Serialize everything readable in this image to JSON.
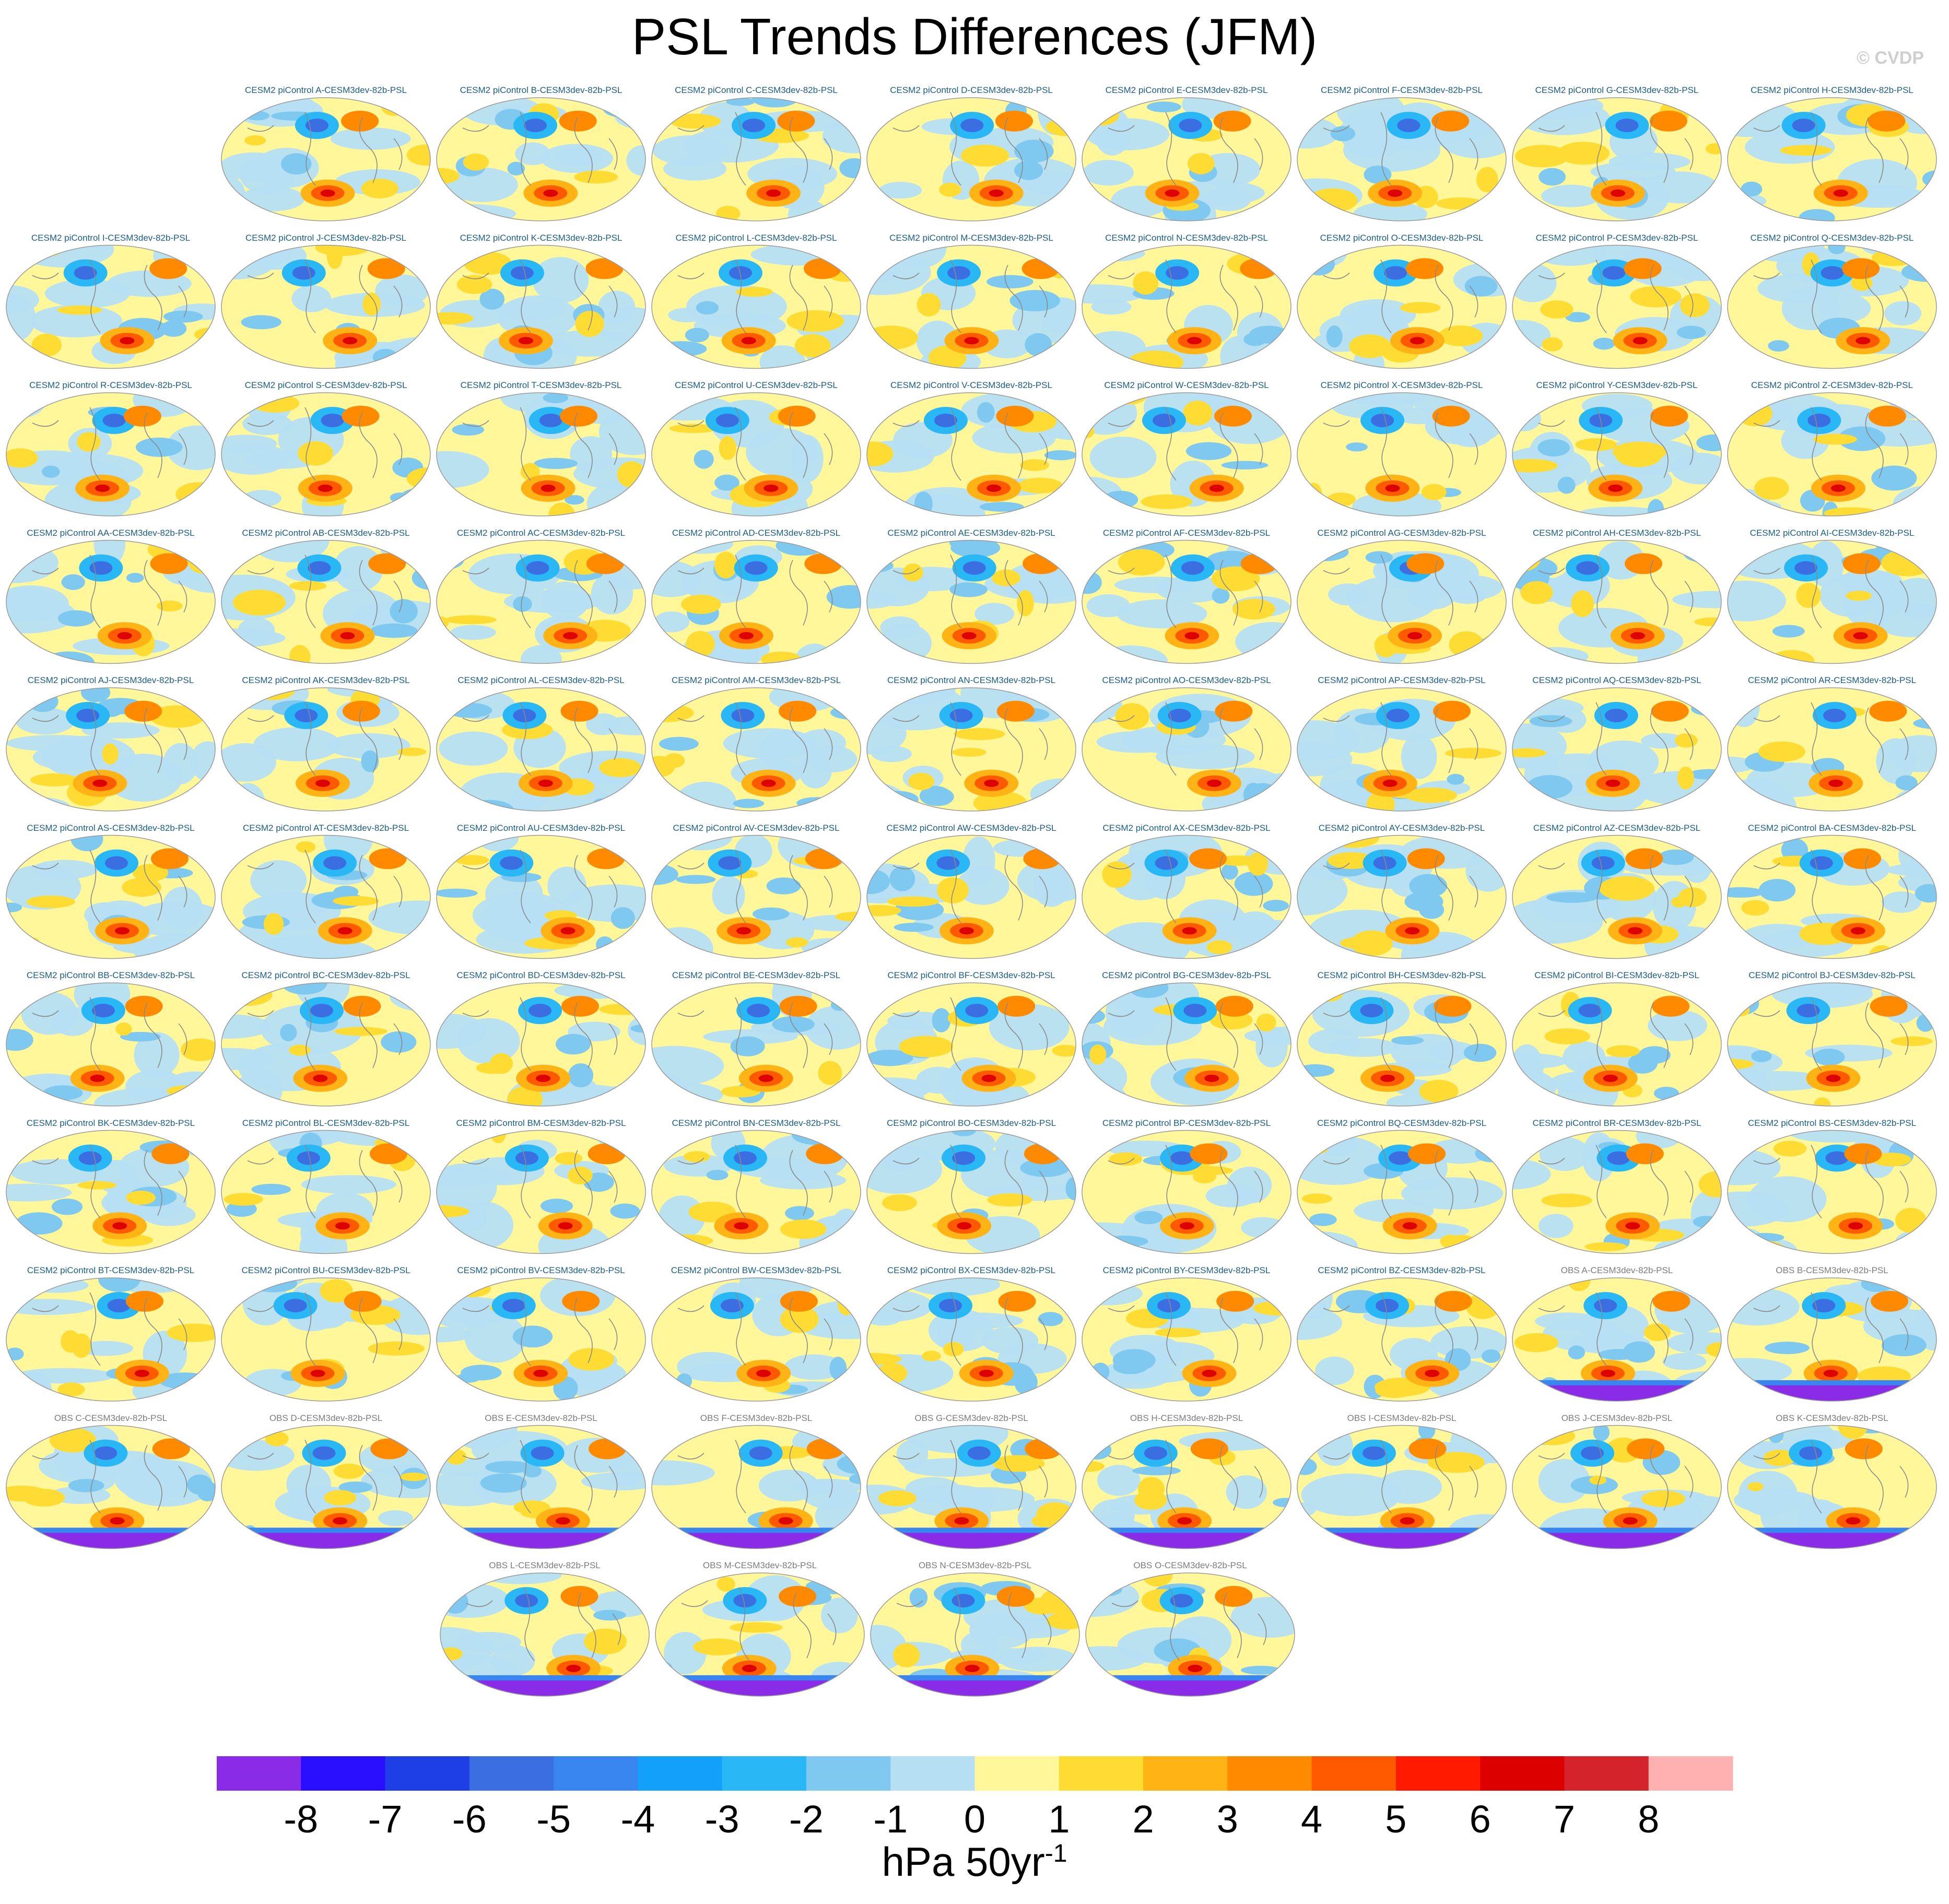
{
  "figure": {
    "title": "PSL Trends Differences (JFM)",
    "credit": "© CVDP"
  },
  "chart_data": {
    "type": "heatmap",
    "title": "PSL Trends Differences (JFM)",
    "projection": "robinson-global",
    "model_label_color": "#1a5d86",
    "obs_label_color": "#7c7c7c",
    "coastline_color": "#8a8a8a",
    "panel_rows": [
      [
        "CESM2 piControl A-CESM3dev-82b-PSL",
        "CESM2 piControl B-CESM3dev-82b-PSL",
        "CESM2 piControl C-CESM3dev-82b-PSL",
        "CESM2 piControl D-CESM3dev-82b-PSL",
        "CESM2 piControl E-CESM3dev-82b-PSL",
        "CESM2 piControl F-CESM3dev-82b-PSL",
        "CESM2 piControl G-CESM3dev-82b-PSL",
        "CESM2 piControl H-CESM3dev-82b-PSL"
      ],
      [
        "CESM2 piControl I-CESM3dev-82b-PSL",
        "CESM2 piControl J-CESM3dev-82b-PSL",
        "CESM2 piControl K-CESM3dev-82b-PSL",
        "CESM2 piControl L-CESM3dev-82b-PSL",
        "CESM2 piControl M-CESM3dev-82b-PSL",
        "CESM2 piControl N-CESM3dev-82b-PSL",
        "CESM2 piControl O-CESM3dev-82b-PSL",
        "CESM2 piControl P-CESM3dev-82b-PSL",
        "CESM2 piControl Q-CESM3dev-82b-PSL"
      ],
      [
        "CESM2 piControl R-CESM3dev-82b-PSL",
        "CESM2 piControl S-CESM3dev-82b-PSL",
        "CESM2 piControl T-CESM3dev-82b-PSL",
        "CESM2 piControl U-CESM3dev-82b-PSL",
        "CESM2 piControl V-CESM3dev-82b-PSL",
        "CESM2 piControl W-CESM3dev-82b-PSL",
        "CESM2 piControl X-CESM3dev-82b-PSL",
        "CESM2 piControl Y-CESM3dev-82b-PSL",
        "CESM2 piControl Z-CESM3dev-82b-PSL"
      ],
      [
        "CESM2 piControl AA-CESM3dev-82b-PSL",
        "CESM2 piControl AB-CESM3dev-82b-PSL",
        "CESM2 piControl AC-CESM3dev-82b-PSL",
        "CESM2 piControl AD-CESM3dev-82b-PSL",
        "CESM2 piControl AE-CESM3dev-82b-PSL",
        "CESM2 piControl AF-CESM3dev-82b-PSL",
        "CESM2 piControl AG-CESM3dev-82b-PSL",
        "CESM2 piControl AH-CESM3dev-82b-PSL",
        "CESM2 piControl AI-CESM3dev-82b-PSL"
      ],
      [
        "CESM2 piControl AJ-CESM3dev-82b-PSL",
        "CESM2 piControl AK-CESM3dev-82b-PSL",
        "CESM2 piControl AL-CESM3dev-82b-PSL",
        "CESM2 piControl AM-CESM3dev-82b-PSL",
        "CESM2 piControl AN-CESM3dev-82b-PSL",
        "CESM2 piControl AO-CESM3dev-82b-PSL",
        "CESM2 piControl AP-CESM3dev-82b-PSL",
        "CESM2 piControl AQ-CESM3dev-82b-PSL",
        "CESM2 piControl AR-CESM3dev-82b-PSL"
      ],
      [
        "CESM2 piControl AS-CESM3dev-82b-PSL",
        "CESM2 piControl AT-CESM3dev-82b-PSL",
        "CESM2 piControl AU-CESM3dev-82b-PSL",
        "CESM2 piControl AV-CESM3dev-82b-PSL",
        "CESM2 piControl AW-CESM3dev-82b-PSL",
        "CESM2 piControl AX-CESM3dev-82b-PSL",
        "CESM2 piControl AY-CESM3dev-82b-PSL",
        "CESM2 piControl AZ-CESM3dev-82b-PSL",
        "CESM2 piControl BA-CESM3dev-82b-PSL"
      ],
      [
        "CESM2 piControl BB-CESM3dev-82b-PSL",
        "CESM2 piControl BC-CESM3dev-82b-PSL",
        "CESM2 piControl BD-CESM3dev-82b-PSL",
        "CESM2 piControl BE-CESM3dev-82b-PSL",
        "CESM2 piControl BF-CESM3dev-82b-PSL",
        "CESM2 piControl BG-CESM3dev-82b-PSL",
        "CESM2 piControl BH-CESM3dev-82b-PSL",
        "CESM2 piControl BI-CESM3dev-82b-PSL",
        "CESM2 piControl BJ-CESM3dev-82b-PSL"
      ],
      [
        "CESM2 piControl BK-CESM3dev-82b-PSL",
        "CESM2 piControl BL-CESM3dev-82b-PSL",
        "CESM2 piControl BM-CESM3dev-82b-PSL",
        "CESM2 piControl BN-CESM3dev-82b-PSL",
        "CESM2 piControl BO-CESM3dev-82b-PSL",
        "CESM2 piControl BP-CESM3dev-82b-PSL",
        "CESM2 piControl BQ-CESM3dev-82b-PSL",
        "CESM2 piControl BR-CESM3dev-82b-PSL",
        "CESM2 piControl BS-CESM3dev-82b-PSL"
      ],
      [
        "CESM2 piControl BT-CESM3dev-82b-PSL",
        "CESM2 piControl BU-CESM3dev-82b-PSL",
        "CESM2 piControl BV-CESM3dev-82b-PSL",
        "CESM2 piControl BW-CESM3dev-82b-PSL",
        "CESM2 piControl BX-CESM3dev-82b-PSL",
        "CESM2 piControl BY-CESM3dev-82b-PSL",
        "CESM2 piControl BZ-CESM3dev-82b-PSL",
        "OBS A-CESM3dev-82b-PSL",
        "OBS B-CESM3dev-82b-PSL"
      ],
      [
        "OBS C-CESM3dev-82b-PSL",
        "OBS D-CESM3dev-82b-PSL",
        "OBS E-CESM3dev-82b-PSL",
        "OBS F-CESM3dev-82b-PSL",
        "OBS G-CESM3dev-82b-PSL",
        "OBS H-CESM3dev-82b-PSL",
        "OBS I-CESM3dev-82b-PSL",
        "OBS J-CESM3dev-82b-PSL",
        "OBS K-CESM3dev-82b-PSL"
      ],
      [
        "OBS L-CESM3dev-82b-PSL",
        "OBS M-CESM3dev-82b-PSL",
        "OBS N-CESM3dev-82b-PSL",
        "OBS O-CESM3dev-82b-PSL"
      ]
    ],
    "colorbar": {
      "levels": [
        -8,
        -7,
        -6,
        -5,
        -4,
        -3,
        -2,
        -1,
        0,
        1,
        2,
        3,
        4,
        5,
        6,
        7,
        8
      ],
      "tick_labels": [
        "-8",
        "-7",
        "-6",
        "-5",
        "-4",
        "-3",
        "-2",
        "-1",
        "0",
        "1",
        "2",
        "3",
        "4",
        "5",
        "6",
        "7",
        "8"
      ],
      "colors": [
        "#8a2be8",
        "#2a0fff",
        "#1f3fe6",
        "#3b6ee0",
        "#3a86f0",
        "#13a0fb",
        "#29b7f5",
        "#7fc8ef",
        "#b6dff3",
        "#fff79a",
        "#ffdc33",
        "#ffb315",
        "#ff8a00",
        "#ff5a00",
        "#ff1a00",
        "#dd0000",
        "#d4232a",
        "#ffb0b0"
      ],
      "units_main": "hPa 50yr",
      "units_exp": "-1"
    }
  }
}
